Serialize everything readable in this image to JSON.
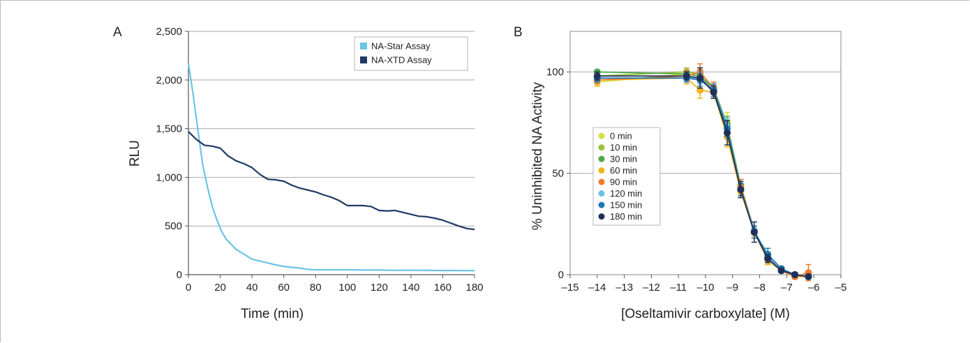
{
  "chart_data": [
    {
      "panel": "A",
      "type": "line",
      "xlabel": "Time (min)",
      "ylabel": "RLU",
      "xlim": [
        0,
        180
      ],
      "ylim": [
        0,
        2500
      ],
      "xticks": [
        "0",
        "20",
        "40",
        "60",
        "80",
        "100",
        "120",
        "140",
        "160",
        "180"
      ],
      "yticks": [
        "0",
        "500",
        "1,000",
        "1,500",
        "2,000",
        "2,500"
      ],
      "grid": "horizontal",
      "legend": "top-right",
      "series": [
        {
          "name": "NA-Star Assay",
          "color": "#6cc3ea",
          "x": [
            0,
            3,
            6,
            9,
            12,
            15,
            18,
            21,
            24,
            27,
            30,
            35,
            40,
            45,
            50,
            55,
            60,
            65,
            70,
            75,
            80,
            90,
            100,
            110,
            120,
            130,
            140,
            150,
            160,
            170,
            180
          ],
          "y": [
            2170,
            1850,
            1480,
            1130,
            900,
            700,
            560,
            440,
            360,
            310,
            260,
            210,
            160,
            140,
            120,
            100,
            85,
            75,
            68,
            55,
            50,
            50,
            50,
            48,
            47,
            45,
            45,
            44,
            43,
            42,
            42
          ]
        },
        {
          "name": "NA-XTD Assay",
          "color": "#1f3864",
          "x": [
            0,
            5,
            10,
            15,
            20,
            25,
            30,
            35,
            40,
            45,
            50,
            55,
            60,
            65,
            70,
            75,
            80,
            85,
            90,
            95,
            100,
            105,
            110,
            115,
            120,
            125,
            130,
            135,
            140,
            145,
            150,
            155,
            160,
            165,
            170,
            175,
            180
          ],
          "y": [
            1470,
            1390,
            1330,
            1320,
            1300,
            1220,
            1170,
            1140,
            1100,
            1030,
            980,
            975,
            960,
            920,
            890,
            870,
            850,
            820,
            795,
            760,
            710,
            710,
            710,
            700,
            660,
            655,
            660,
            640,
            620,
            600,
            595,
            580,
            560,
            530,
            500,
            475,
            465
          ]
        }
      ]
    },
    {
      "panel": "B",
      "type": "scatter",
      "xlabel": "[Oseltamivir carboxylate] (M)",
      "ylabel": "% Uninhibited NA Activity",
      "xlim": [
        -15,
        -5
      ],
      "ylim": [
        0,
        120
      ],
      "xticks": [
        "–15",
        "–14",
        "–13",
        "–12",
        "–11",
        "–10",
        "–9",
        "–8",
        "–7",
        "–6",
        "–5"
      ],
      "yticks": [
        "0",
        "50",
        "100"
      ],
      "grid": "horizontal",
      "legend": "left",
      "x": [
        -14,
        -10.7,
        -10.2,
        -9.7,
        -9.2,
        -8.7,
        -8.2,
        -7.7,
        -7.2,
        -6.7,
        -6.2
      ],
      "series": [
        {
          "name": "0 min",
          "color": "#d6e040",
          "y": [
            95,
            99,
            98,
            90,
            75,
            41,
            22,
            8,
            2,
            0,
            -1
          ],
          "err": [
            2,
            2,
            3,
            3,
            5,
            3,
            2,
            2,
            1,
            1,
            1
          ]
        },
        {
          "name": "10 min",
          "color": "#98c23c",
          "y": [
            98,
            100,
            99,
            90,
            73,
            42,
            21,
            7,
            2,
            0,
            -1
          ],
          "err": [
            2,
            2,
            3,
            3,
            4,
            3,
            2,
            2,
            1,
            1,
            1
          ]
        },
        {
          "name": "30 min",
          "color": "#4ea84a",
          "y": [
            100,
            99,
            98,
            92,
            74,
            44,
            22,
            7,
            2,
            0,
            -1
          ],
          "err": [
            1,
            2,
            3,
            3,
            4,
            3,
            2,
            2,
            1,
            1,
            1
          ]
        },
        {
          "name": "60 min",
          "color": "#f4b41a",
          "y": [
            96,
            97,
            91,
            90,
            68,
            41,
            21,
            7,
            2,
            -1,
            -1
          ],
          "err": [
            3,
            3,
            4,
            3,
            5,
            3,
            2,
            2,
            1,
            1,
            1
          ]
        },
        {
          "name": "90 min",
          "color": "#ef7b2b",
          "y": [
            96,
            98,
            100,
            92,
            72,
            43,
            22,
            8,
            2,
            -1,
            1
          ],
          "err": [
            2,
            3,
            4,
            3,
            4,
            4,
            2,
            2,
            1,
            1,
            4
          ]
        },
        {
          "name": "120 min",
          "color": "#6cbde6",
          "y": [
            97,
            97,
            97,
            91,
            73,
            42,
            22,
            9,
            2,
            0,
            -1
          ],
          "err": [
            2,
            2,
            3,
            3,
            4,
            3,
            2,
            2,
            1,
            1,
            1
          ]
        },
        {
          "name": "150 min",
          "color": "#1f78b4",
          "y": [
            97,
            97,
            96,
            91,
            72,
            42,
            21,
            10,
            3,
            0,
            -1
          ],
          "err": [
            2,
            2,
            3,
            3,
            4,
            3,
            3,
            3,
            1,
            1,
            1
          ]
        },
        {
          "name": "180 min",
          "color": "#1f2f5a",
          "y": [
            98,
            98,
            97,
            90,
            70,
            42,
            21,
            8,
            2,
            0,
            -1
          ],
          "err": [
            2,
            2,
            5,
            3,
            6,
            4,
            5,
            2,
            1,
            1,
            1
          ]
        }
      ]
    }
  ]
}
